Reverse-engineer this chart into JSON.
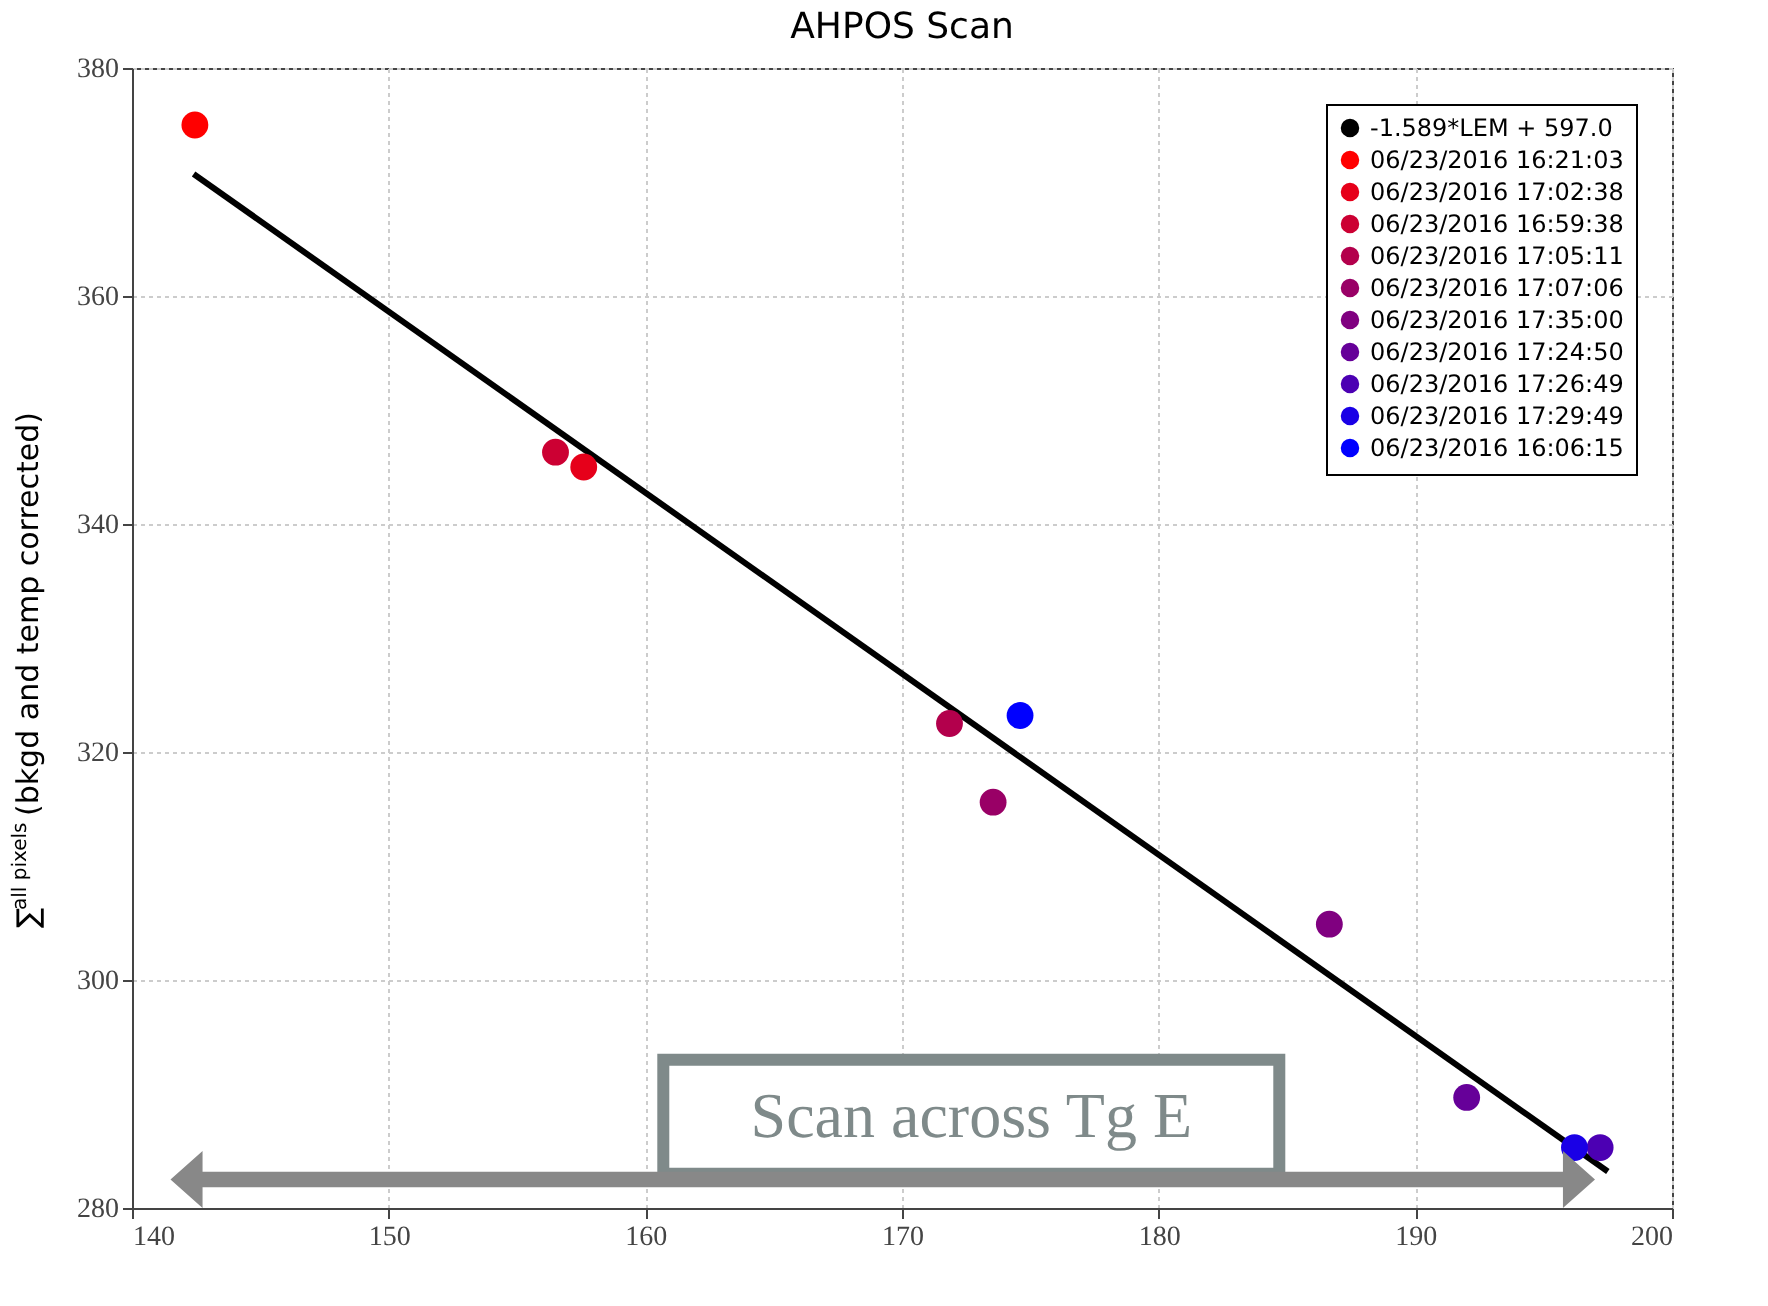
{
  "chart_data": {
    "type": "scatter",
    "title": "AHPOS Scan",
    "ylabel": "∑$^{all pixels}$ (bkgd and temp corrected)",
    "xlim": [
      140,
      200
    ],
    "xticks": [
      140,
      150,
      160,
      170,
      180,
      190,
      200
    ],
    "ylim": [
      280,
      380
    ],
    "yticks": [
      280,
      300,
      320,
      340,
      360,
      380
    ],
    "grid": true,
    "legend": "top right",
    "marker": "circle",
    "annotations": [
      "Scan across Tg E"
    ],
    "series": [
      {
        "name": "-1.589*LEM + 597.0",
        "type": "line",
        "marker": "none",
        "color": "#000000",
        "x": [
          142.4,
          197.5
        ],
        "values": [
          370.7,
          283.2
        ]
      },
      {
        "name": "06/23/2016 16:21:03",
        "color": "#ff0000",
        "x": [
          142.45
        ],
        "values": [
          375.0
        ]
      },
      {
        "name": "06/23/2016 17:02:38",
        "color": "#e6001a",
        "x": [
          157.6
        ],
        "values": [
          345.0
        ]
      },
      {
        "name": "06/23/2016 16:59:38",
        "color": "#cc0033",
        "x": [
          156.5
        ],
        "values": [
          346.3
        ]
      },
      {
        "name": "06/23/2016 17:05:11",
        "color": "#b3004c",
        "x": [
          171.85
        ],
        "values": [
          322.5
        ]
      },
      {
        "name": "06/23/2016 17:07:06",
        "color": "#990066",
        "x": [
          173.55
        ],
        "values": [
          315.6
        ]
      },
      {
        "name": "06/23/2016 17:35:00",
        "color": "#800080",
        "x": [
          186.65
        ],
        "values": [
          304.9
        ]
      },
      {
        "name": "06/23/2016 17:24:50",
        "color": "#660099",
        "x": [
          192.0
        ],
        "values": [
          289.7
        ]
      },
      {
        "name": "06/23/2016 17:26:49",
        "color": "#4c00b3",
        "x": [
          197.2
        ],
        "values": [
          285.3
        ]
      },
      {
        "name": "06/23/2016 17:29:49",
        "color": "#1a00e6",
        "x": [
          196.2
        ],
        "values": [
          285.3
        ]
      },
      {
        "name": "06/23/2016 16:06:15",
        "color": "#0000ff",
        "x": [
          174.6
        ],
        "values": [
          323.2
        ]
      }
    ]
  }
}
